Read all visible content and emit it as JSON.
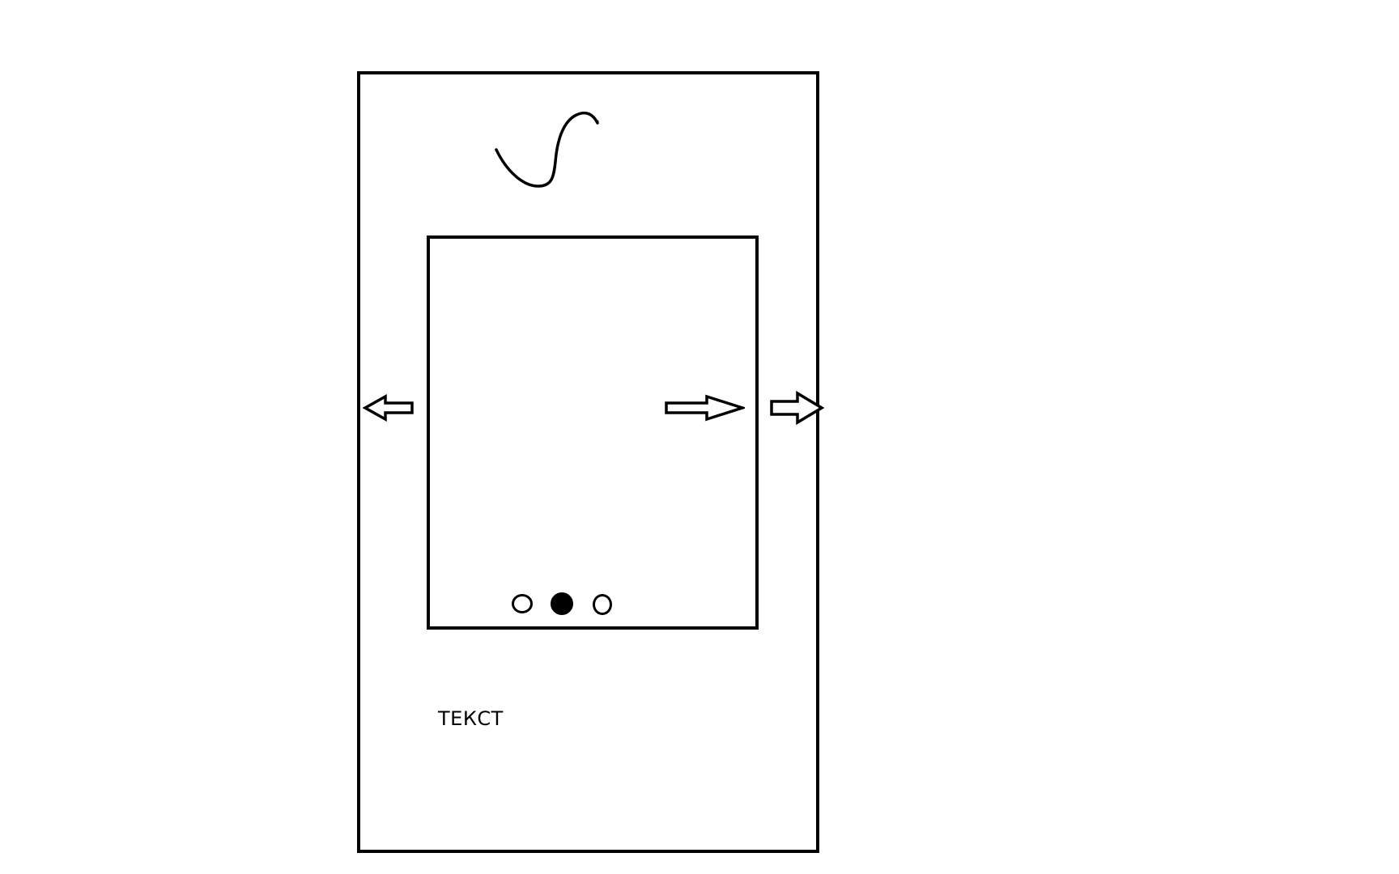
{
  "mockup": {
    "text_label": "ТЕКСТ",
    "logo_icon": "squiggle-logo-icon",
    "slider": {
      "prev_icon": "arrow-left-icon",
      "next_icon": "arrow-right-icon",
      "outer_next_icon": "arrow-right-icon",
      "pagination": {
        "count": 3,
        "active_index": 2
      }
    }
  }
}
